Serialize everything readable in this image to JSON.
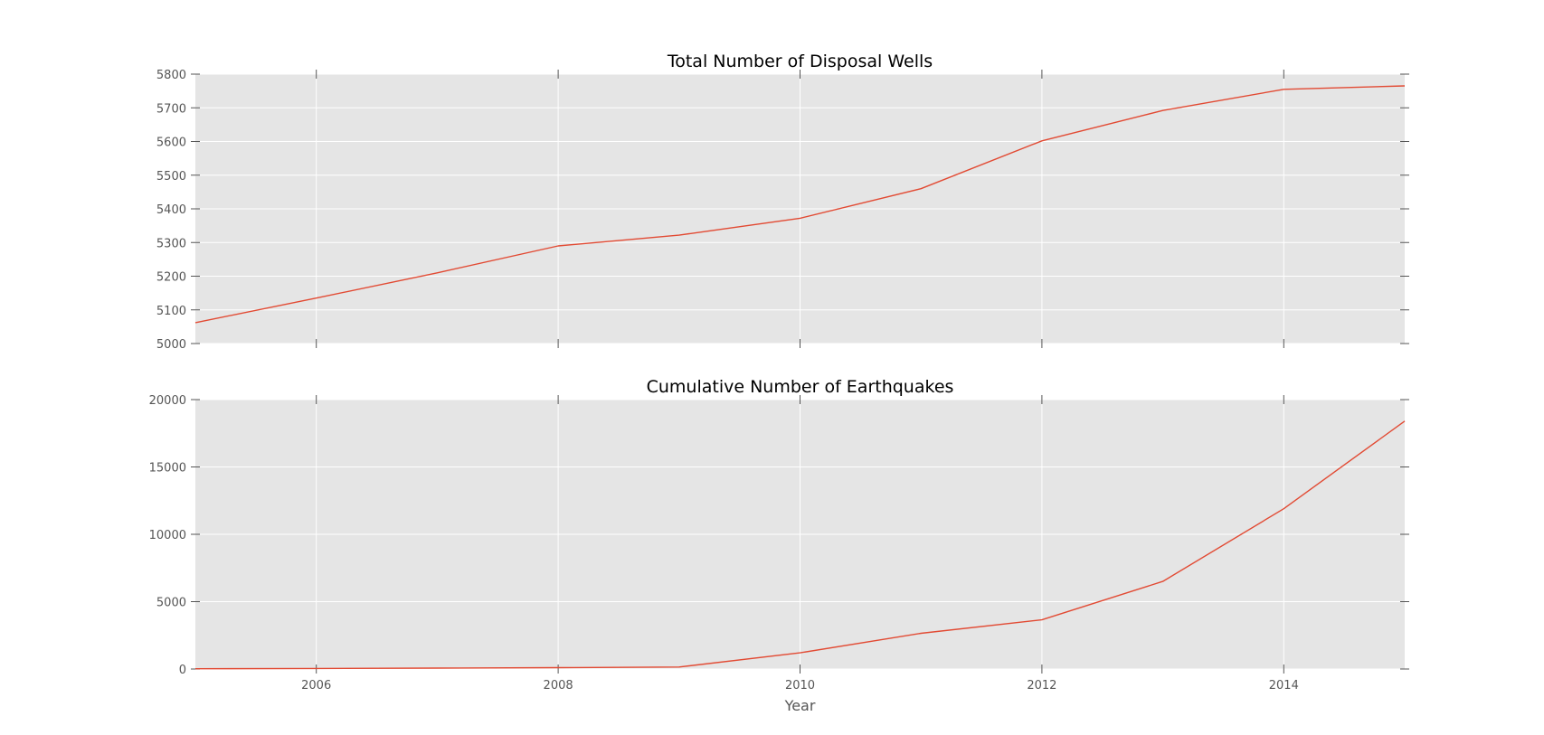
{
  "colors": {
    "figure_bg": "#ffffff",
    "axes_bg": "#e5e5e5",
    "grid": "#ffffff",
    "line": "#e24a33",
    "tick": "#555555",
    "text": "#000000"
  },
  "chart_data": [
    {
      "type": "line",
      "title": "Total Number of Disposal Wells",
      "xlabel": "",
      "ylabel": "",
      "xlim": [
        2005,
        2015
      ],
      "ylim": [
        5000,
        5800
      ],
      "x_ticks": [
        2006,
        2008,
        2010,
        2012,
        2014
      ],
      "y_ticks": [
        5000,
        5100,
        5200,
        5300,
        5400,
        5500,
        5600,
        5700,
        5800
      ],
      "y_tick_labels": [
        "5000",
        "5100",
        "5200",
        "5300",
        "5400",
        "5500",
        "5600",
        "5700",
        "5800"
      ],
      "grid": true,
      "series": [
        {
          "x": [
            2005,
            2006,
            2007,
            2008,
            2009,
            2010,
            2011,
            2012,
            2013,
            2014,
            2015
          ],
          "values": [
            5062,
            5135,
            5210,
            5290,
            5322,
            5372,
            5460,
            5602,
            5692,
            5755,
            5765
          ]
        }
      ]
    },
    {
      "type": "line",
      "title": "Cumulative Number of Earthquakes",
      "xlabel": "Year",
      "ylabel": "",
      "xlim": [
        2005,
        2015
      ],
      "ylim": [
        0,
        20000
      ],
      "x_ticks": [
        2006,
        2008,
        2010,
        2012,
        2014
      ],
      "x_tick_labels": [
        "2006",
        "2008",
        "2010",
        "2012",
        "2014"
      ],
      "y_ticks": [
        0,
        5000,
        10000,
        15000,
        20000
      ],
      "y_tick_labels": [
        "0",
        "5000",
        "10000",
        "15000",
        "20000"
      ],
      "grid": true,
      "series": [
        {
          "x": [
            2005,
            2006,
            2007,
            2008,
            2009,
            2010,
            2011,
            2012,
            2013,
            2014,
            2015
          ],
          "values": [
            20,
            40,
            70,
            100,
            150,
            1200,
            2650,
            3650,
            6500,
            11900,
            18400
          ]
        }
      ]
    }
  ]
}
